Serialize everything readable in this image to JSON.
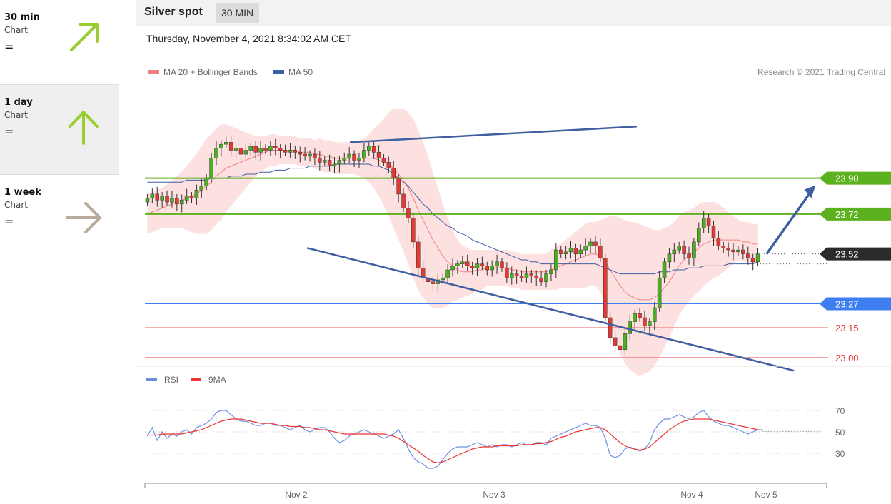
{
  "sidebar": {
    "items": [
      {
        "name": "30 min",
        "sub": "Chart",
        "eq": "=",
        "icon": "arrow-up-right-icon",
        "color": "#9acd32"
      },
      {
        "name": "1 day",
        "sub": "Chart",
        "eq": "=",
        "icon": "arrow-up-icon",
        "color": "#9acd32"
      },
      {
        "name": "1 week",
        "sub": "Chart",
        "eq": "=",
        "icon": "arrow-right-icon",
        "color": "#b8ab9c"
      }
    ]
  },
  "header": {
    "title": "Silver spot",
    "period": "30 MIN",
    "datetime": "Thursday, November 4, 2021 8:34:02 AM CET"
  },
  "colors": {
    "bullish": "#4caf1f",
    "bearish": "#e53935",
    "resistance": "#5cb21e",
    "support_blue": "#3d7ff0",
    "support_red": "#f08080",
    "channel": "#3f5fa0",
    "ma20": "#f28080",
    "ma50": "#3f5fa0",
    "band": "#fde0e0",
    "rsi": "#6a8fe0",
    "rsi_ma": "#ee3333",
    "current": "#2b2b2b"
  },
  "chart_data": [
    {
      "type": "candlestick",
      "title": "Silver spot",
      "x_ticks": [
        "Nov 2",
        "Nov 3",
        "Nov 4",
        "Nov 5"
      ],
      "ylim": [
        22.96,
        24.4
      ],
      "legend": [
        {
          "label": "MA 20 + Bollinger Bands",
          "color": "#f28080"
        },
        {
          "label": "MA 50",
          "color": "#3f5fa0"
        }
      ],
      "copyright": "Research © 2021 Trading Central",
      "levels": [
        {
          "value": 23.9,
          "label": "23.90",
          "kind": "resistance"
        },
        {
          "value": 23.72,
          "label": "23.72",
          "kind": "resistance"
        },
        {
          "value": 23.52,
          "label": "23.52",
          "kind": "current"
        },
        {
          "value": 23.27,
          "label": "23.27",
          "kind": "support_blue"
        },
        {
          "value": 23.15,
          "label": "23.15",
          "kind": "support_red"
        },
        {
          "value": 23.0,
          "label": "23.00",
          "kind": "support_red"
        }
      ],
      "closes": [
        23.8,
        23.82,
        23.79,
        23.81,
        23.78,
        23.8,
        23.77,
        23.79,
        23.81,
        23.8,
        23.84,
        23.86,
        23.9,
        24.0,
        24.05,
        24.07,
        24.08,
        24.04,
        24.05,
        24.02,
        24.04,
        24.06,
        24.03,
        24.05,
        24.04,
        24.06,
        24.05,
        24.04,
        24.03,
        24.04,
        24.03,
        24.02,
        24.01,
        24.02,
        24.0,
        23.98,
        23.99,
        23.96,
        23.97,
        23.99,
        24.0,
        24.02,
        23.99,
        24.0,
        24.04,
        24.06,
        24.03,
        24.0,
        23.98,
        23.95,
        23.9,
        23.82,
        23.75,
        23.7,
        23.58,
        23.45,
        23.4,
        23.38,
        23.37,
        23.39,
        23.4,
        23.44,
        23.46,
        23.47,
        23.48,
        23.46,
        23.45,
        23.47,
        23.46,
        23.44,
        23.46,
        23.48,
        23.45,
        23.4,
        23.42,
        23.41,
        23.4,
        23.42,
        23.41,
        23.4,
        23.38,
        23.42,
        23.44,
        23.54,
        23.52,
        23.53,
        23.55,
        23.52,
        23.54,
        23.56,
        23.58,
        23.56,
        23.5,
        23.2,
        23.1,
        23.06,
        23.04,
        23.12,
        23.18,
        23.22,
        23.2,
        23.16,
        23.18,
        23.25,
        23.4,
        23.48,
        23.52,
        23.54,
        23.56,
        23.52,
        23.5,
        23.58,
        23.65,
        23.7,
        23.66,
        23.6,
        23.56,
        23.55,
        23.54,
        23.53,
        23.54,
        23.52,
        23.5,
        23.48,
        23.52
      ],
      "ma20": [
        23.72,
        23.73,
        23.74,
        23.75,
        23.76,
        23.77,
        23.78,
        23.79,
        23.8,
        23.81,
        23.82,
        23.84,
        23.86,
        23.88,
        23.91,
        23.93,
        23.95,
        23.96,
        23.97,
        23.98,
        23.99,
        24.0,
        24.01,
        24.02,
        24.03,
        24.04,
        24.04,
        24.04,
        24.04,
        24.04,
        24.04,
        24.03,
        24.03,
        24.03,
        24.02,
        24.02,
        24.01,
        24.01,
        24.0,
        24.0,
        24.0,
        24.0,
        24.0,
        24.0,
        24.0,
        24.0,
        24.0,
        23.99,
        23.98,
        23.97,
        23.95,
        23.92,
        23.89,
        23.85,
        23.8,
        23.74,
        23.69,
        23.64,
        23.59,
        23.55,
        23.51,
        23.48,
        23.46,
        23.44,
        23.43,
        23.43,
        23.43,
        23.44,
        23.44,
        23.45,
        23.45,
        23.45,
        23.45,
        23.45,
        23.44,
        23.44,
        23.43,
        23.43,
        23.43,
        23.43,
        23.43,
        23.43,
        23.44,
        23.45,
        23.46,
        23.47,
        23.48,
        23.49,
        23.5,
        23.51,
        23.52,
        23.52,
        23.51,
        23.48,
        23.44,
        23.4,
        23.36,
        23.33,
        23.31,
        23.3,
        23.29,
        23.29,
        23.29,
        23.3,
        23.32,
        23.35,
        23.38,
        23.42,
        23.46,
        23.49,
        23.51,
        23.53,
        23.55,
        23.57,
        23.58,
        23.59,
        23.59,
        23.59,
        23.59,
        23.59,
        23.59,
        23.58,
        23.58,
        23.57,
        23.57
      ],
      "ma50": [
        23.88,
        23.88,
        23.88,
        23.88,
        23.88,
        23.88,
        23.88,
        23.88,
        23.89,
        23.89,
        23.89,
        23.89,
        23.89,
        23.9,
        23.9,
        23.9,
        23.9,
        23.91,
        23.91,
        23.91,
        23.92,
        23.92,
        23.92,
        23.93,
        23.93,
        23.93,
        23.94,
        23.94,
        23.94,
        23.95,
        23.95,
        23.95,
        23.95,
        23.96,
        23.96,
        23.96,
        23.96,
        23.96,
        23.97,
        23.97,
        23.97,
        23.97,
        23.97,
        23.97,
        23.97,
        23.97,
        23.96,
        23.96,
        23.95,
        23.94,
        23.92,
        23.9,
        23.88,
        23.86,
        23.83,
        23.8,
        23.77,
        23.75,
        23.72,
        23.7,
        23.68,
        23.66,
        23.65,
        23.63,
        23.62,
        23.61,
        23.59,
        23.58,
        23.57,
        23.56,
        23.55,
        23.54,
        23.53,
        23.52,
        23.51,
        23.5,
        23.49,
        23.49,
        23.48,
        23.48,
        23.47,
        23.47,
        23.47,
        23.47,
        23.47,
        23.47,
        23.47,
        23.47,
        23.47,
        23.47,
        23.47,
        23.47,
        23.46,
        23.45,
        23.44,
        23.43,
        23.42,
        23.42,
        23.42,
        23.42,
        23.42,
        23.42,
        23.42,
        23.42,
        23.43,
        23.43,
        23.43,
        23.44,
        23.44,
        23.44,
        23.45,
        23.45,
        23.45,
        23.46,
        23.46,
        23.46,
        23.46,
        23.46,
        23.47,
        23.47,
        23.47,
        23.47,
        23.47,
        23.47,
        23.48
      ],
      "band_width": [
        0.1,
        0.1,
        0.1,
        0.1,
        0.11,
        0.12,
        0.13,
        0.14,
        0.16,
        0.18,
        0.2,
        0.22,
        0.24,
        0.24,
        0.24,
        0.24,
        0.22,
        0.2,
        0.18,
        0.16,
        0.14,
        0.12,
        0.1,
        0.09,
        0.08,
        0.08,
        0.08,
        0.07,
        0.07,
        0.07,
        0.07,
        0.07,
        0.07,
        0.07,
        0.07,
        0.08,
        0.08,
        0.08,
        0.08,
        0.08,
        0.08,
        0.08,
        0.08,
        0.09,
        0.1,
        0.12,
        0.15,
        0.18,
        0.22,
        0.26,
        0.3,
        0.33,
        0.36,
        0.38,
        0.4,
        0.4,
        0.39,
        0.37,
        0.34,
        0.3,
        0.26,
        0.22,
        0.18,
        0.15,
        0.13,
        0.12,
        0.11,
        0.1,
        0.1,
        0.09,
        0.09,
        0.09,
        0.09,
        0.09,
        0.09,
        0.09,
        0.09,
        0.09,
        0.09,
        0.09,
        0.09,
        0.09,
        0.1,
        0.11,
        0.11,
        0.12,
        0.13,
        0.14,
        0.15,
        0.16,
        0.16,
        0.16,
        0.18,
        0.22,
        0.27,
        0.31,
        0.34,
        0.36,
        0.37,
        0.38,
        0.38,
        0.37,
        0.36,
        0.34,
        0.32,
        0.3,
        0.28,
        0.26,
        0.25,
        0.24,
        0.23,
        0.22,
        0.22,
        0.21,
        0.2,
        0.19,
        0.18,
        0.16,
        0.14,
        0.12,
        0.1,
        0.1,
        0.1,
        0.1,
        0.1
      ],
      "channel_upper": [
        [
          23.13,
          24.08
        ],
        [
          23.33,
          23.55
        ]
      ],
      "channel_lower": [
        [
          22.68,
          23.55
        ],
        [
          22.84,
          22.97
        ]
      ],
      "projection": [
        [
          23.52,
          23.52
        ],
        [
          23.9,
          23.9
        ]
      ],
      "channel_x": [
        [
          0.3,
          0.72
        ],
        [
          0.88,
          0.95
        ]
      ],
      "projection_x": [
        0.91,
        0.99
      ]
    },
    {
      "type": "line",
      "title": "RSI",
      "legend": [
        {
          "label": "RSI",
          "color": "#6a8fe0"
        },
        {
          "label": "9MA",
          "color": "#ee3333"
        }
      ],
      "ylim": [
        12,
        88
      ],
      "y_ticks": [
        "70",
        "50",
        "30"
      ],
      "y_tick_values": [
        70,
        50,
        30
      ],
      "series": [
        {
          "name": "RSI",
          "values": [
            46,
            54,
            42,
            50,
            44,
            48,
            46,
            50,
            52,
            48,
            54,
            56,
            58,
            62,
            68,
            70,
            70,
            66,
            62,
            60,
            60,
            58,
            56,
            56,
            58,
            58,
            56,
            56,
            54,
            52,
            54,
            56,
            52,
            50,
            52,
            54,
            54,
            50,
            44,
            40,
            42,
            46,
            48,
            50,
            52,
            50,
            48,
            46,
            44,
            46,
            48,
            52,
            44,
            34,
            26,
            22,
            20,
            16,
            16,
            18,
            24,
            30,
            34,
            36,
            36,
            36,
            38,
            40,
            38,
            36,
            38,
            36,
            38,
            38,
            36,
            38,
            40,
            38,
            38,
            40,
            40,
            38,
            44,
            46,
            48,
            50,
            52,
            54,
            56,
            58,
            56,
            56,
            54,
            44,
            28,
            26,
            28,
            34,
            36,
            34,
            32,
            34,
            40,
            52,
            58,
            62,
            62,
            64,
            66,
            64,
            62,
            64,
            68,
            70,
            64,
            60,
            58,
            56,
            56,
            54,
            52,
            50,
            48,
            50,
            52,
            52
          ]
        },
        {
          "name": "9MA",
          "values": [
            47,
            47,
            47,
            48,
            48,
            48,
            48,
            48,
            49,
            50,
            51,
            52,
            54,
            56,
            58,
            60,
            61,
            62,
            62,
            62,
            61,
            60,
            59,
            58,
            58,
            58,
            57,
            56,
            56,
            55,
            55,
            55,
            54,
            54,
            53,
            52,
            52,
            51,
            50,
            49,
            48,
            48,
            48,
            48,
            48,
            48,
            48,
            48,
            48,
            47,
            46,
            44,
            41,
            38,
            35,
            32,
            28,
            25,
            22,
            21,
            22,
            24,
            26,
            28,
            30,
            32,
            34,
            35,
            36,
            36,
            36,
            37,
            37,
            37,
            37,
            37,
            38,
            38,
            38,
            39,
            39,
            40,
            41,
            43,
            45,
            46,
            48,
            50,
            51,
            52,
            53,
            54,
            54,
            52,
            48,
            44,
            40,
            37,
            35,
            34,
            33,
            34,
            36,
            40,
            44,
            48,
            52,
            55,
            58,
            60,
            61,
            62,
            62,
            62,
            62,
            61,
            60,
            59,
            58,
            57,
            56,
            55,
            54,
            53,
            52
          ]
        }
      ]
    }
  ]
}
